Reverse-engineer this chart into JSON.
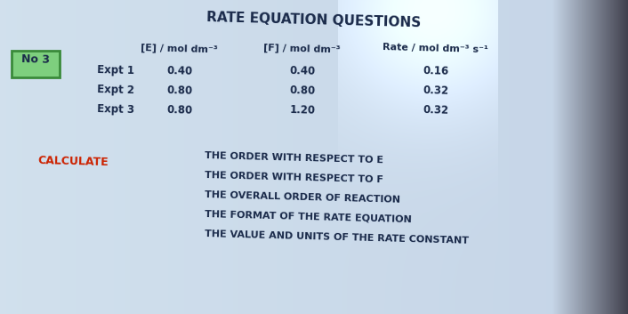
{
  "title": "RATE EQUATION QUESTIONS",
  "bg_color_left": "#c5d8e8",
  "bg_color_right": "#a8c4d8",
  "no_label": "No 3",
  "col_header_E": "[E] / mol dm⁻³",
  "col_header_F": "[F] / mol dm⁻³",
  "col_header_Rate": "Rate / mol dm⁻³ s⁻¹",
  "row_labels": [
    "Expt 1",
    "Expt 2",
    "Expt 3"
  ],
  "E_values": [
    "0.40",
    "0.80",
    "0.80"
  ],
  "F_values": [
    "0.40",
    "0.80",
    "1.20"
  ],
  "Rate_values": [
    "0.16",
    "0.32",
    "0.32"
  ],
  "calculate_label": "CALCULATE",
  "calculate_color": "#cc2200",
  "instructions": [
    "THE ORDER WITH RESPECT TO E",
    "THE ORDER WITH RESPECT TO F",
    "THE OVERALL ORDER OF REACTION",
    "THE FORMAT OF THE RATE EQUATION",
    "THE VALUE AND UNITS OF THE RATE CONSTANT"
  ],
  "text_color": "#1a2a4a",
  "no3_box_color": "#7ecf7e",
  "no3_border_color": "#3a8a3a",
  "title_fontsize": 11,
  "header_fontsize": 8,
  "data_fontsize": 8.5,
  "calc_fontsize": 9,
  "instr_fontsize": 8
}
